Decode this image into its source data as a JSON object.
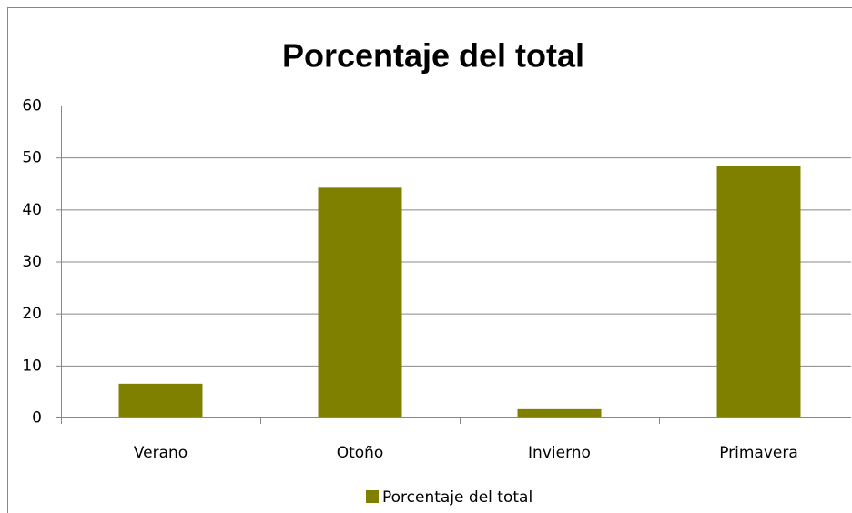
{
  "chart_data": {
    "type": "bar",
    "title": "Porcentaje del total",
    "categories": [
      "Verano",
      "Otoño",
      "Invierno",
      "Primavera"
    ],
    "series": [
      {
        "name": "Porcentaje del total",
        "color": "#808000",
        "values": [
          6.5,
          44.2,
          1.6,
          48.4
        ]
      }
    ],
    "ylim": [
      0,
      60
    ],
    "yticks": [
      0,
      10,
      20,
      30,
      40,
      50,
      60
    ],
    "grid": true,
    "legend": "bottom"
  }
}
